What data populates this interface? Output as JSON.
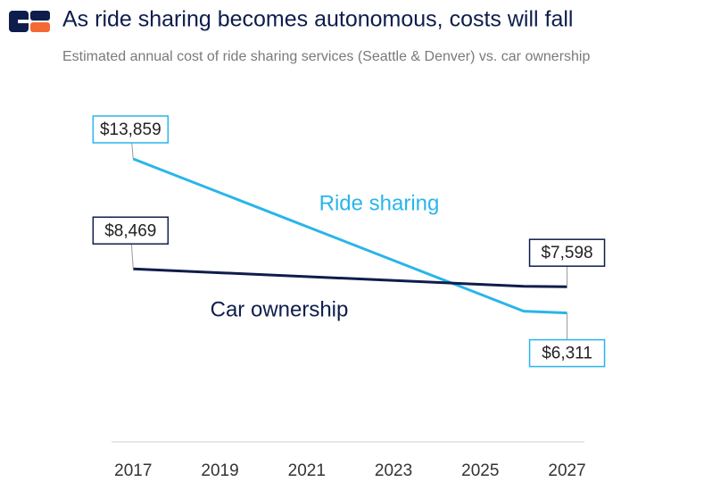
{
  "chart_data": {
    "type": "line",
    "title": "As ride sharing becomes autonomous, costs will fall",
    "subtitle": "Estimated annual cost of ride sharing services (Seattle & Denver) vs. car ownership",
    "x": [
      2017,
      2026,
      2027
    ],
    "xlim": [
      2016.5,
      2027.4
    ],
    "xticks": [
      2017,
      2019,
      2021,
      2023,
      2025,
      2027
    ],
    "ylim": [
      0,
      16000
    ],
    "series": [
      {
        "name": "Ride sharing",
        "color": "#29b5ea",
        "values": [
          13859,
          6400,
          6311
        ],
        "value_labels": [
          "$13,859",
          null,
          "$6,311"
        ]
      },
      {
        "name": "Car ownership",
        "color": "#0e1d4c",
        "values": [
          8469,
          7620,
          7598
        ],
        "value_labels": [
          "$8,469",
          null,
          "$7,598"
        ]
      }
    ]
  }
}
